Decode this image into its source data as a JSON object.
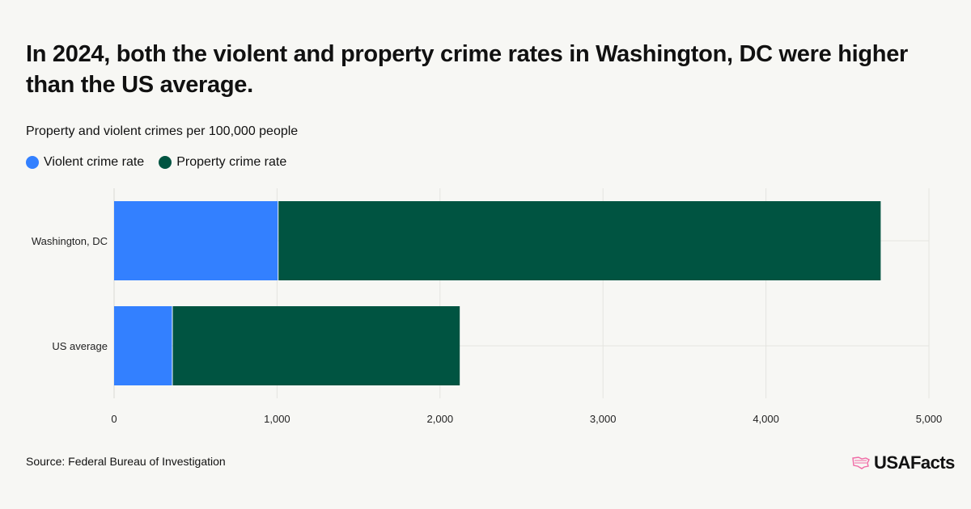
{
  "title": "In 2024, both the violent and property crime rates in Washington, DC were higher than the US average.",
  "subtitle": "Property and violent crimes per 100,000 people",
  "source": "Source: Federal Bureau of Investigation",
  "logo_text": "USAFacts",
  "colors": {
    "violent": "#3380ff",
    "property": "#005441",
    "grid": "#e4e4e0",
    "accent": "#f06aa5"
  },
  "chart_data": {
    "type": "bar",
    "orientation": "horizontal",
    "stacked": true,
    "categories": [
      "Washington, DC",
      "US average"
    ],
    "series": [
      {
        "name": "Violent crime rate",
        "values": [
          1004,
          355
        ]
      },
      {
        "name": "Property crime rate",
        "values": [
          3700,
          1766
        ]
      }
    ],
    "xlim": [
      0,
      5000
    ],
    "xticks": [
      0,
      1000,
      2000,
      3000,
      4000,
      5000
    ],
    "xtick_labels": [
      "0",
      "1,000",
      "2,000",
      "3,000",
      "4,000",
      "5,000"
    ],
    "grid": true,
    "legend_placement": "top-left"
  }
}
